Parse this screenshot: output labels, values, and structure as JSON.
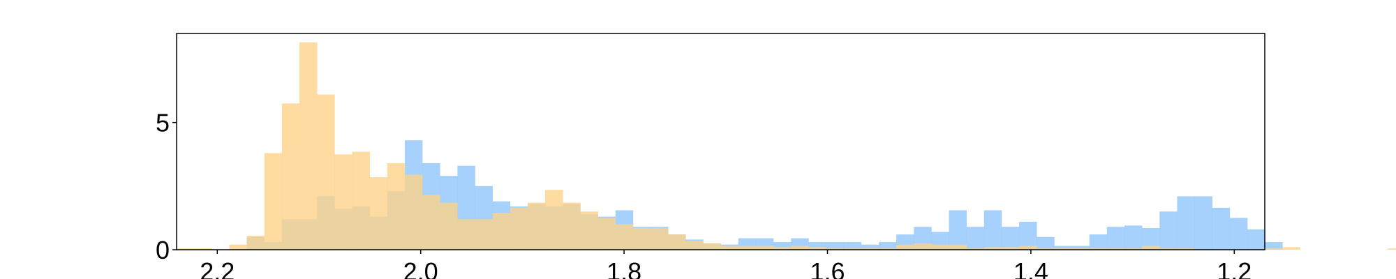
{
  "chart_data": {
    "type": "bar",
    "title": "",
    "xlabel": "",
    "ylabel": "",
    "x_axis_inverted": true,
    "xlim": [
      2.24,
      1.17
    ],
    "ylim": [
      0,
      8.5
    ],
    "grid": false,
    "legend": "none",
    "x_ticks": [
      {
        "value": 2.2,
        "label": "2.2"
      },
      {
        "value": 2.0,
        "label": "2.0"
      },
      {
        "value": 1.8,
        "label": "1.8"
      },
      {
        "value": 1.6,
        "label": "1.6"
      },
      {
        "value": 1.4,
        "label": "1.4"
      },
      {
        "value": 1.2,
        "label": "1.2"
      }
    ],
    "y_ticks": [
      {
        "value": 0,
        "label": "0"
      },
      {
        "value": 5,
        "label": "5"
      }
    ],
    "bin_edges_start": 2.24,
    "bin_width": 0.01726,
    "series": [
      {
        "color": "#8ec5fb",
        "opacity": 0.8,
        "values": [
          0,
          0,
          0,
          0,
          0.5,
          0.3,
          1.2,
          1.2,
          2.1,
          1.6,
          1.7,
          1.3,
          2.3,
          4.3,
          3.4,
          2.9,
          3.3,
          2.5,
          1.9,
          1.7,
          1.8,
          1.7,
          1.8,
          1.4,
          1.3,
          1.55,
          0.9,
          0.9,
          0.6,
          0.4,
          0.25,
          0.2,
          0.45,
          0.45,
          0.3,
          0.45,
          0.3,
          0.3,
          0.3,
          0.2,
          0.3,
          0.6,
          0.9,
          0.7,
          1.55,
          0.9,
          1.55,
          0.9,
          1.1,
          0.5,
          0.15,
          0.15,
          0.6,
          0.9,
          0.95,
          0.85,
          1.5,
          2.1,
          2.1,
          1.65,
          1.25,
          0.8,
          0.3,
          0,
          0,
          0,
          0,
          0,
          0,
          0
        ]
      },
      {
        "color": "#fdd28a",
        "opacity": 0.8,
        "values": [
          0.05,
          0.05,
          0,
          0.2,
          0.55,
          3.8,
          5.75,
          8.15,
          6.1,
          3.75,
          3.85,
          2.85,
          3.4,
          2.95,
          2.15,
          1.85,
          1.2,
          1.2,
          1.45,
          1.65,
          1.85,
          2.35,
          1.85,
          1.5,
          1.25,
          1.0,
          0.85,
          0.85,
          0.6,
          0.35,
          0.25,
          0.15,
          0.15,
          0.15,
          0.1,
          0.15,
          0.1,
          0.05,
          0.05,
          0.05,
          0.05,
          0.2,
          0.25,
          0.2,
          0.2,
          0.05,
          0.1,
          0.1,
          0.15,
          0.05,
          0.05,
          0.05,
          0.05,
          0.05,
          0.05,
          0.15,
          0.05,
          0.05,
          0,
          0,
          0,
          0,
          0.05,
          0.1,
          0,
          0,
          0,
          0,
          0,
          0.05
        ]
      }
    ]
  }
}
